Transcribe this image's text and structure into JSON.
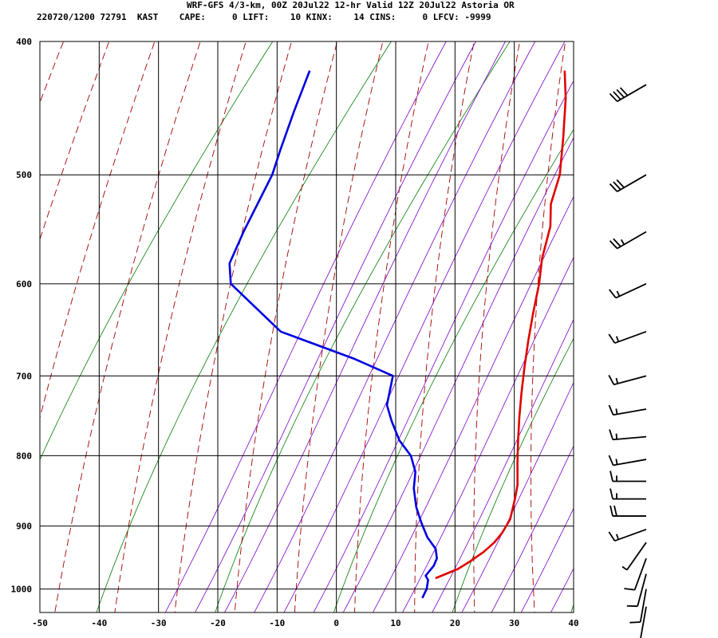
{
  "header": {
    "line1": "WRF-GFS 4/3-km, 00Z 20Jul22 12-hr Valid 12Z 20Jul22 Astoria OR",
    "line2": "220720/1200 72791  KAST    CAPE:     0 LIFT:    10 KINX:    14 CINS:     0 LFCV: -9999"
  },
  "colors": {
    "temperature": "#e00000",
    "dewpoint": "#0000e0",
    "dry_adiabat": "#a00000",
    "moist_adiabat": "#7a00c8",
    "mixing_ratio": "#007a00",
    "grid": "#000000"
  },
  "chart_data": {
    "type": "line",
    "subtype": "skew-t log-p sounding",
    "xlim": [
      -50,
      40
    ],
    "ylim": [
      1040,
      400
    ],
    "y_scale": "log",
    "x_ticks": [
      -50,
      -40,
      -30,
      -20,
      -10,
      0,
      10,
      20,
      30,
      40
    ],
    "y_ticks": [
      400,
      500,
      600,
      700,
      800,
      900,
      1000
    ],
    "grid": true,
    "series": [
      {
        "key": "temperature",
        "points": [
          [
            12,
            982
          ],
          [
            14.5,
            967
          ],
          [
            15.5,
            955
          ],
          [
            16.5,
            940
          ],
          [
            17,
            925
          ],
          [
            17,
            910
          ],
          [
            16.5,
            890
          ],
          [
            14.5,
            860
          ],
          [
            13,
            840
          ],
          [
            10,
            810
          ],
          [
            7,
            780
          ],
          [
            4,
            750
          ],
          [
            1,
            720
          ],
          [
            -2,
            690
          ],
          [
            -5,
            660
          ],
          [
            -8,
            630
          ],
          [
            -11,
            600
          ],
          [
            -14,
            575
          ],
          [
            -17,
            545
          ],
          [
            -20,
            525
          ],
          [
            -22.5,
            500
          ],
          [
            -27,
            470
          ],
          [
            -32,
            440
          ],
          [
            -36,
            420
          ]
        ]
      },
      {
        "key": "dewpoint",
        "points": [
          [
            12.5,
            1015
          ],
          [
            12,
            1000
          ],
          [
            11,
            985
          ],
          [
            10,
            978
          ],
          [
            10,
            962
          ],
          [
            9.5,
            950
          ],
          [
            8,
            935
          ],
          [
            5,
            917
          ],
          [
            2,
            895
          ],
          [
            -1,
            872
          ],
          [
            -4,
            845
          ],
          [
            -6,
            822
          ],
          [
            -9,
            800
          ],
          [
            -13,
            780
          ],
          [
            -17,
            755
          ],
          [
            -20,
            735
          ],
          [
            -23,
            700
          ],
          [
            -32,
            680
          ],
          [
            -48,
            650
          ],
          [
            -63,
            600
          ],
          [
            -66,
            580
          ],
          [
            -68,
            550
          ],
          [
            -71,
            500
          ],
          [
            -73,
            480
          ],
          [
            -76,
            450
          ],
          [
            -79,
            420
          ]
        ]
      }
    ],
    "wind_barbs": [
      {
        "p": 1030,
        "dir": 190,
        "spd": 10
      },
      {
        "p": 1000,
        "dir": 190,
        "spd": 10
      },
      {
        "p": 975,
        "dir": 195,
        "spd": 10
      },
      {
        "p": 950,
        "dir": 200,
        "spd": 10
      },
      {
        "p": 925,
        "dir": 215,
        "spd": 5
      },
      {
        "p": 905,
        "dir": 250,
        "spd": 15
      },
      {
        "p": 885,
        "dir": 270,
        "spd": 20
      },
      {
        "p": 860,
        "dir": 270,
        "spd": 15
      },
      {
        "p": 835,
        "dir": 270,
        "spd": 15
      },
      {
        "p": 805,
        "dir": 260,
        "spd": 15
      },
      {
        "p": 775,
        "dir": 265,
        "spd": 15
      },
      {
        "p": 740,
        "dir": 260,
        "spd": 15
      },
      {
        "p": 700,
        "dir": 255,
        "spd": 15
      },
      {
        "p": 650,
        "dir": 250,
        "spd": 15
      },
      {
        "p": 600,
        "dir": 245,
        "spd": 15
      },
      {
        "p": 550,
        "dir": 240,
        "spd": 25
      },
      {
        "p": 500,
        "dir": 240,
        "spd": 30
      },
      {
        "p": 430,
        "dir": 240,
        "spd": 40
      }
    ]
  }
}
